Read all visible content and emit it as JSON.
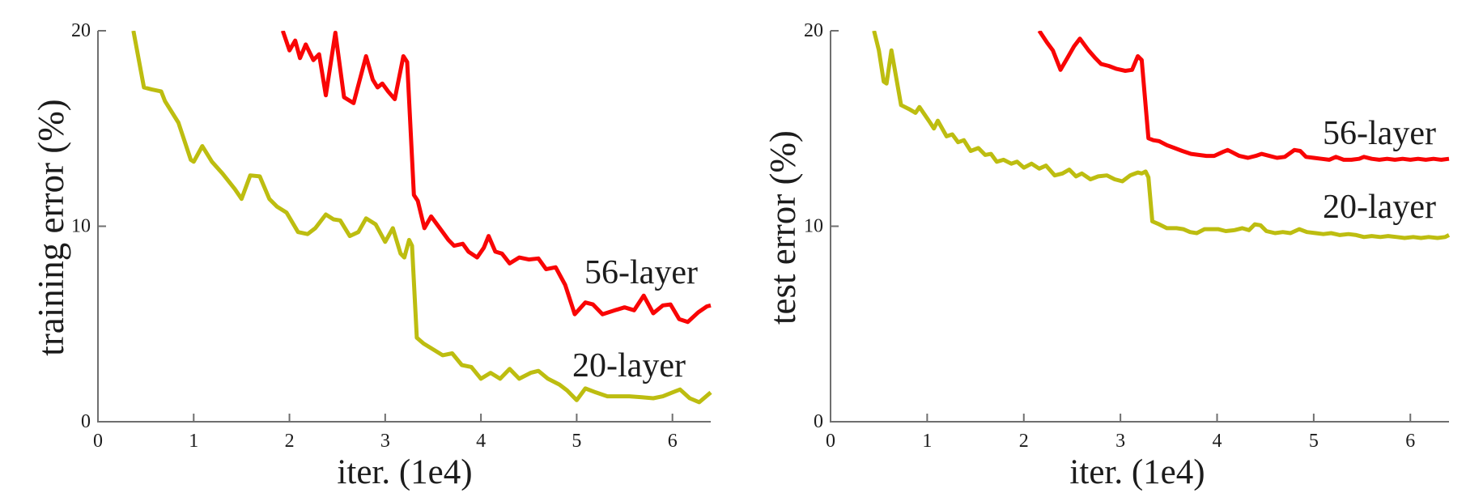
{
  "figure": {
    "background": "#ffffff",
    "text_color": "#1c1c1c",
    "axis_color": "#6f6f6f"
  },
  "chart_data": [
    {
      "id": "training",
      "type": "line",
      "title": "",
      "xlabel": "iter. (1e4)",
      "ylabel": "training error (%)",
      "xlim": [
        0,
        6.4
      ],
      "ylim": [
        0,
        20
      ],
      "xticks": [
        0,
        1,
        2,
        3,
        4,
        5,
        6
      ],
      "yticks": [
        0,
        10,
        20
      ],
      "grid": false,
      "legend_position": "inline-annotations",
      "series": [
        {
          "name": "56-layer",
          "color": "#f90505",
          "points": [
            [
              1.93,
              20
            ],
            [
              2.0,
              19.0
            ],
            [
              2.06,
              19.5
            ],
            [
              2.11,
              18.6
            ],
            [
              2.17,
              19.3
            ],
            [
              2.25,
              18.5
            ],
            [
              2.31,
              18.8
            ],
            [
              2.38,
              16.7
            ],
            [
              2.48,
              19.9
            ],
            [
              2.57,
              16.6
            ],
            [
              2.67,
              16.3
            ],
            [
              2.8,
              18.7
            ],
            [
              2.87,
              17.5
            ],
            [
              2.92,
              17.1
            ],
            [
              2.97,
              17.3
            ],
            [
              3.03,
              16.9
            ],
            [
              3.1,
              16.5
            ],
            [
              3.19,
              18.7
            ],
            [
              3.23,
              18.4
            ],
            [
              3.3,
              11.6
            ],
            [
              3.34,
              11.3
            ],
            [
              3.41,
              9.9
            ],
            [
              3.48,
              10.5
            ],
            [
              3.57,
              9.9
            ],
            [
              3.66,
              9.3
            ],
            [
              3.72,
              9.0
            ],
            [
              3.81,
              9.1
            ],
            [
              3.87,
              8.7
            ],
            [
              3.96,
              8.4
            ],
            [
              4.03,
              8.9
            ],
            [
              4.08,
              9.5
            ],
            [
              4.15,
              8.7
            ],
            [
              4.22,
              8.6
            ],
            [
              4.3,
              8.1
            ],
            [
              4.4,
              8.4
            ],
            [
              4.5,
              8.3
            ],
            [
              4.6,
              8.35
            ],
            [
              4.68,
              7.8
            ],
            [
              4.78,
              7.9
            ],
            [
              4.88,
              7.0
            ],
            [
              4.98,
              5.5
            ],
            [
              5.09,
              6.1
            ],
            [
              5.17,
              6.0
            ],
            [
              5.27,
              5.5
            ],
            [
              5.4,
              5.7
            ],
            [
              5.5,
              5.85
            ],
            [
              5.6,
              5.7
            ],
            [
              5.7,
              6.45
            ],
            [
              5.8,
              5.55
            ],
            [
              5.9,
              5.95
            ],
            [
              5.98,
              6.0
            ],
            [
              6.07,
              5.25
            ],
            [
              6.16,
              5.1
            ],
            [
              6.27,
              5.6
            ],
            [
              6.36,
              5.9
            ],
            [
              6.4,
              5.95
            ]
          ]
        },
        {
          "name": "20-layer",
          "color": "#bdbd10",
          "points": [
            [
              0.37,
              20
            ],
            [
              0.48,
              17.1
            ],
            [
              0.56,
              17.0
            ],
            [
              0.66,
              16.9
            ],
            [
              0.7,
              16.4
            ],
            [
              0.84,
              15.3
            ],
            [
              0.97,
              13.4
            ],
            [
              1.0,
              13.3
            ],
            [
              1.09,
              14.1
            ],
            [
              1.19,
              13.3
            ],
            [
              1.3,
              12.7
            ],
            [
              1.43,
              11.9
            ],
            [
              1.5,
              11.4
            ],
            [
              1.59,
              12.6
            ],
            [
              1.69,
              12.55
            ],
            [
              1.79,
              11.4
            ],
            [
              1.87,
              11.0
            ],
            [
              1.97,
              10.7
            ],
            [
              2.09,
              9.7
            ],
            [
              2.19,
              9.6
            ],
            [
              2.27,
              9.9
            ],
            [
              2.38,
              10.6
            ],
            [
              2.46,
              10.35
            ],
            [
              2.53,
              10.3
            ],
            [
              2.63,
              9.5
            ],
            [
              2.72,
              9.7
            ],
            [
              2.8,
              10.4
            ],
            [
              2.9,
              10.1
            ],
            [
              3.0,
              9.2
            ],
            [
              3.08,
              9.9
            ],
            [
              3.16,
              8.6
            ],
            [
              3.2,
              8.4
            ],
            [
              3.25,
              9.3
            ],
            [
              3.28,
              9.0
            ],
            [
              3.33,
              4.3
            ],
            [
              3.4,
              4.0
            ],
            [
              3.5,
              3.7
            ],
            [
              3.6,
              3.4
            ],
            [
              3.7,
              3.5
            ],
            [
              3.8,
              2.9
            ],
            [
              3.9,
              2.8
            ],
            [
              4.0,
              2.2
            ],
            [
              4.1,
              2.5
            ],
            [
              4.2,
              2.2
            ],
            [
              4.3,
              2.7
            ],
            [
              4.4,
              2.2
            ],
            [
              4.52,
              2.5
            ],
            [
              4.6,
              2.6
            ],
            [
              4.7,
              2.2
            ],
            [
              4.82,
              1.9
            ],
            [
              4.9,
              1.6
            ],
            [
              5.0,
              1.1
            ],
            [
              5.09,
              1.7
            ],
            [
              5.2,
              1.5
            ],
            [
              5.32,
              1.3
            ],
            [
              5.45,
              1.3
            ],
            [
              5.55,
              1.3
            ],
            [
              5.68,
              1.25
            ],
            [
              5.8,
              1.2
            ],
            [
              5.9,
              1.3
            ],
            [
              6.0,
              1.5
            ],
            [
              6.08,
              1.65
            ],
            [
              6.18,
              1.2
            ],
            [
              6.28,
              1.0
            ],
            [
              6.4,
              1.5
            ]
          ]
        }
      ],
      "annotations": [
        {
          "text": "56-layer",
          "x": 5.67,
          "y": 7.6
        },
        {
          "text": "20-layer",
          "x": 5.55,
          "y": 2.85
        }
      ]
    },
    {
      "id": "test",
      "type": "line",
      "title": "",
      "xlabel": "iter. (1e4)",
      "ylabel": "test error (%)",
      "xlim": [
        0,
        6.4
      ],
      "ylim": [
        0,
        20
      ],
      "xticks": [
        0,
        1,
        2,
        3,
        4,
        5,
        6
      ],
      "yticks": [
        0,
        10,
        20
      ],
      "grid": false,
      "legend_position": "inline-annotations",
      "series": [
        {
          "name": "56-layer",
          "color": "#f90505",
          "points": [
            [
              2.16,
              20
            ],
            [
              2.24,
              19.4
            ],
            [
              2.3,
              19.0
            ],
            [
              2.38,
              18.0
            ],
            [
              2.45,
              18.6
            ],
            [
              2.52,
              19.2
            ],
            [
              2.58,
              19.6
            ],
            [
              2.67,
              19.0
            ],
            [
              2.74,
              18.6
            ],
            [
              2.8,
              18.3
            ],
            [
              2.88,
              18.2
            ],
            [
              2.96,
              18.05
            ],
            [
              3.05,
              17.95
            ],
            [
              3.12,
              18.0
            ],
            [
              3.18,
              18.7
            ],
            [
              3.22,
              18.5
            ],
            [
              3.29,
              14.5
            ],
            [
              3.34,
              14.4
            ],
            [
              3.4,
              14.35
            ],
            [
              3.48,
              14.15
            ],
            [
              3.56,
              14.0
            ],
            [
              3.64,
              13.85
            ],
            [
              3.73,
              13.7
            ],
            [
              3.81,
              13.65
            ],
            [
              3.89,
              13.6
            ],
            [
              3.97,
              13.6
            ],
            [
              4.06,
              13.8
            ],
            [
              4.11,
              13.9
            ],
            [
              4.15,
              13.8
            ],
            [
              4.23,
              13.6
            ],
            [
              4.32,
              13.5
            ],
            [
              4.4,
              13.6
            ],
            [
              4.46,
              13.7
            ],
            [
              4.54,
              13.6
            ],
            [
              4.62,
              13.5
            ],
            [
              4.7,
              13.55
            ],
            [
              4.8,
              13.9
            ],
            [
              4.86,
              13.85
            ],
            [
              4.92,
              13.55
            ],
            [
              5.0,
              13.5
            ],
            [
              5.08,
              13.45
            ],
            [
              5.16,
              13.4
            ],
            [
              5.23,
              13.55
            ],
            [
              5.31,
              13.4
            ],
            [
              5.39,
              13.4
            ],
            [
              5.47,
              13.45
            ],
            [
              5.52,
              13.55
            ],
            [
              5.6,
              13.45
            ],
            [
              5.68,
              13.4
            ],
            [
              5.76,
              13.45
            ],
            [
              5.84,
              13.4
            ],
            [
              5.92,
              13.45
            ],
            [
              6.0,
              13.4
            ],
            [
              6.08,
              13.45
            ],
            [
              6.16,
              13.4
            ],
            [
              6.24,
              13.45
            ],
            [
              6.32,
              13.4
            ],
            [
              6.4,
              13.45
            ]
          ]
        },
        {
          "name": "20-layer",
          "color": "#bdbd10",
          "points": [
            [
              0.45,
              20
            ],
            [
              0.5,
              19.0
            ],
            [
              0.55,
              17.4
            ],
            [
              0.58,
              17.3
            ],
            [
              0.63,
              19.0
            ],
            [
              0.73,
              16.2
            ],
            [
              0.81,
              16.0
            ],
            [
              0.88,
              15.8
            ],
            [
              0.92,
              16.1
            ],
            [
              1.03,
              15.3
            ],
            [
              1.07,
              15.0
            ],
            [
              1.11,
              15.4
            ],
            [
              1.2,
              14.6
            ],
            [
              1.26,
              14.7
            ],
            [
              1.32,
              14.3
            ],
            [
              1.38,
              14.4
            ],
            [
              1.45,
              13.85
            ],
            [
              1.53,
              14.0
            ],
            [
              1.6,
              13.65
            ],
            [
              1.66,
              13.7
            ],
            [
              1.72,
              13.3
            ],
            [
              1.79,
              13.4
            ],
            [
              1.87,
              13.2
            ],
            [
              1.93,
              13.3
            ],
            [
              2.0,
              13.0
            ],
            [
              2.08,
              13.2
            ],
            [
              2.16,
              12.95
            ],
            [
              2.23,
              13.1
            ],
            [
              2.32,
              12.6
            ],
            [
              2.4,
              12.7
            ],
            [
              2.47,
              12.9
            ],
            [
              2.54,
              12.55
            ],
            [
              2.6,
              12.7
            ],
            [
              2.69,
              12.4
            ],
            [
              2.77,
              12.55
            ],
            [
              2.86,
              12.6
            ],
            [
              2.94,
              12.4
            ],
            [
              3.02,
              12.3
            ],
            [
              3.1,
              12.6
            ],
            [
              3.18,
              12.75
            ],
            [
              3.22,
              12.7
            ],
            [
              3.26,
              12.8
            ],
            [
              3.29,
              12.5
            ],
            [
              3.33,
              10.25
            ],
            [
              3.4,
              10.1
            ],
            [
              3.48,
              9.9
            ],
            [
              3.58,
              9.9
            ],
            [
              3.65,
              9.85
            ],
            [
              3.72,
              9.7
            ],
            [
              3.79,
              9.65
            ],
            [
              3.87,
              9.85
            ],
            [
              4.01,
              9.85
            ],
            [
              4.09,
              9.75
            ],
            [
              4.18,
              9.8
            ],
            [
              4.26,
              9.9
            ],
            [
              4.33,
              9.8
            ],
            [
              4.39,
              10.1
            ],
            [
              4.45,
              10.05
            ],
            [
              4.51,
              9.75
            ],
            [
              4.6,
              9.65
            ],
            [
              4.68,
              9.7
            ],
            [
              4.76,
              9.65
            ],
            [
              4.85,
              9.85
            ],
            [
              4.93,
              9.7
            ],
            [
              5.02,
              9.65
            ],
            [
              5.1,
              9.6
            ],
            [
              5.18,
              9.65
            ],
            [
              5.27,
              9.55
            ],
            [
              5.36,
              9.6
            ],
            [
              5.44,
              9.55
            ],
            [
              5.52,
              9.45
            ],
            [
              5.6,
              9.5
            ],
            [
              5.69,
              9.45
            ],
            [
              5.77,
              9.5
            ],
            [
              5.86,
              9.45
            ],
            [
              5.94,
              9.4
            ],
            [
              6.03,
              9.45
            ],
            [
              6.11,
              9.4
            ],
            [
              6.19,
              9.45
            ],
            [
              6.28,
              9.4
            ],
            [
              6.36,
              9.45
            ],
            [
              6.4,
              9.55
            ]
          ]
        }
      ],
      "annotations": [
        {
          "text": "56-layer",
          "x": 5.68,
          "y": 14.7
        },
        {
          "text": "20-layer",
          "x": 5.68,
          "y": 10.9
        }
      ]
    }
  ]
}
